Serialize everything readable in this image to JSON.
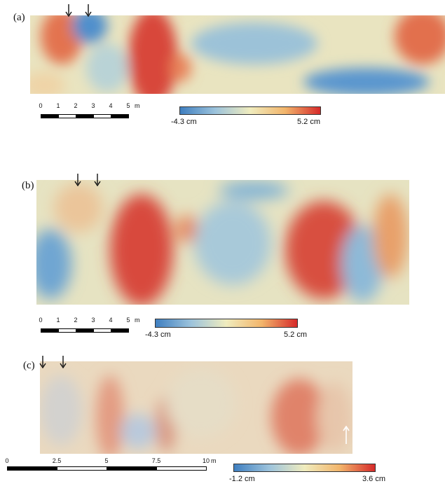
{
  "panels": [
    {
      "label": "(a)",
      "scale_ticks": [
        "0",
        "1",
        "2",
        "3",
        "4",
        "5"
      ],
      "scale_unit": "m",
      "colorbar_min": "-4.3 cm",
      "colorbar_max": "5.2 cm"
    },
    {
      "label": "(b)",
      "scale_ticks": [
        "0",
        "1",
        "2",
        "3",
        "4",
        "5"
      ],
      "scale_unit": "m",
      "colorbar_min": "-4.3 cm",
      "colorbar_max": "5.2 cm"
    },
    {
      "label": "(c)",
      "scale_ticks": [
        "0",
        "2.5",
        "5",
        "7.5",
        "10"
      ],
      "scale_unit": "m",
      "colorbar_min": "-1.2 cm",
      "colorbar_max": "3.6 cm"
    }
  ],
  "colors": {
    "low": "#3f7fc0",
    "mid": "#f0ecbe",
    "high": "#d62a2a",
    "arrow": "#111111",
    "annotation_arrow": "#ffffff"
  },
  "icons": [
    "down-arrow-icon",
    "up-arrow-icon"
  ]
}
